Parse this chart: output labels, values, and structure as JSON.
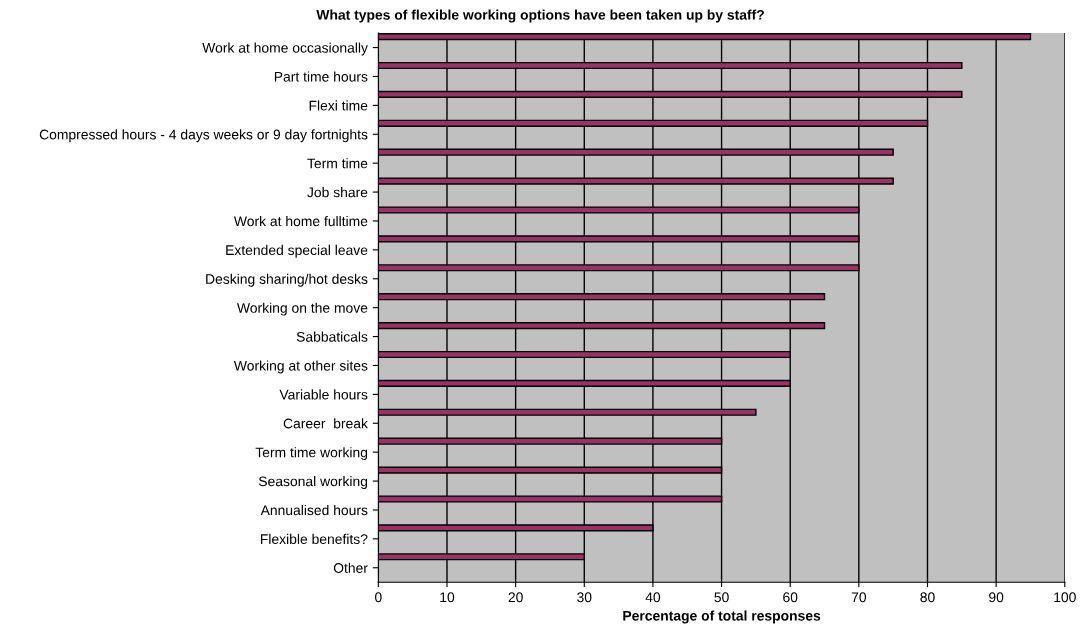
{
  "chart_data": {
    "type": "bar",
    "orientation": "horizontal",
    "title": "What types of flexible working options have been taken up by staff?",
    "xlabel": "Percentage of total responses",
    "categories": [
      "Work at home occasionally",
      "Part time hours",
      "Flexi time",
      "Compressed hours - 4 days weeks or 9 day fortnights",
      "Term time",
      "Job share",
      "Work at home fulltime",
      "Extended special leave",
      "Desking sharing/hot desks",
      "Working on the move",
      "Sabbaticals",
      "Working at other sites",
      "Variable hours",
      "Career  break",
      "Term time working",
      "Seasonal working",
      "Annualised hours",
      "Flexible benefits?",
      "Other"
    ],
    "values": [
      95,
      85,
      85,
      80,
      75,
      75,
      70,
      70,
      70,
      65,
      65,
      60,
      60,
      55,
      50,
      50,
      50,
      40,
      30
    ],
    "color": "#993366",
    "xlim": [
      0,
      100
    ],
    "xticks": [
      0,
      10,
      20,
      30,
      40,
      50,
      60,
      70,
      80,
      90,
      100
    ],
    "grid": "x"
  }
}
